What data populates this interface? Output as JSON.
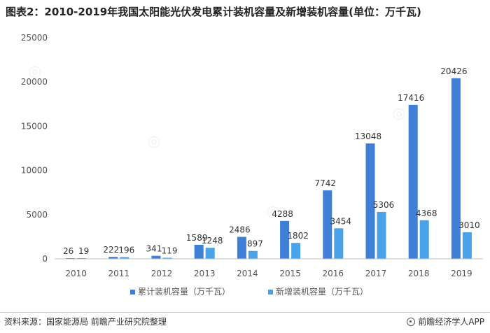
{
  "title": "图表2：2010-2019年我国太阳能光伏发电累计装机容量及新增装机容量(单位：万千瓦)",
  "source": "资料来源：国家能源局 前瞻产业研究院整理",
  "brand": "前瞻经济学人APP",
  "colors": {
    "cumulative": "#3f7fd6",
    "new": "#4aa3e8",
    "axis": "#bfbfbf",
    "text": "#555555"
  },
  "chart_data": {
    "type": "bar",
    "categories": [
      "2010",
      "2011",
      "2012",
      "2013",
      "2014",
      "2015",
      "2016",
      "2017",
      "2018",
      "2019"
    ],
    "series": [
      {
        "name": "累计装机容量（万千瓦）",
        "values": [
          26,
          222,
          341,
          1589,
          2486,
          4288,
          7742,
          13048,
          17416,
          20426
        ]
      },
      {
        "name": "新增装机容量（万千瓦）",
        "values": [
          19,
          196,
          119,
          1248,
          897,
          1802,
          3454,
          5306,
          4368,
          3010
        ]
      }
    ],
    "ylim": [
      0,
      25000
    ],
    "yticks": [
      0,
      5000,
      10000,
      15000,
      20000,
      25000
    ],
    "grid": false,
    "legend": "bottom"
  }
}
